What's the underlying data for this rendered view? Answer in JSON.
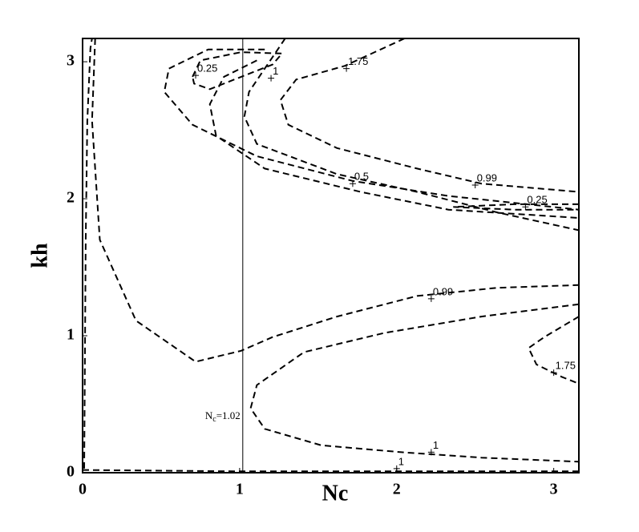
{
  "chart_data": {
    "type": "contour",
    "x_label": "Nc",
    "y_label": "kh",
    "xlim": [
      0,
      3.16
    ],
    "ylim": [
      0,
      3.17
    ],
    "xticks": [
      0,
      1,
      2,
      3
    ],
    "yticks": [
      0,
      1,
      2,
      3
    ],
    "color": "#000000",
    "vline": {
      "x": 1.02,
      "label": [
        "N",
        "c",
        "=1.02"
      ]
    },
    "contours": [
      {
        "x": [
          0,
          1,
          2,
          3.16
        ],
        "y": [
          0.02,
          0.01,
          0.01,
          0.01
        ],
        "labels": [
          {
            "text": "1",
            "x": 2.0,
            "y": 0.03
          }
        ]
      },
      {
        "x": [
          0.01,
          0.02,
          0.03,
          0.05,
          0.06
        ],
        "y": [
          0.03,
          1.7,
          2.57,
          3.1,
          3.17
        ],
        "labels": []
      },
      {
        "x": [
          0.08,
          0.06,
          0.11,
          0.34,
          0.72,
          1.01,
          1.21,
          1.62,
          2.13,
          2.64,
          3.16
        ],
        "y": [
          3.17,
          2.57,
          1.7,
          1.11,
          0.81,
          0.89,
          0.99,
          1.14,
          1.29,
          1.35,
          1.37
        ],
        "labels": [
          {
            "text": "0.99",
            "x": 2.22,
            "y": 1.27
          }
        ]
      },
      {
        "x": [
          3.16,
          2.54,
          1.92,
          1.41,
          1.11,
          1.07,
          1.16,
          1.52,
          2.03,
          2.54,
          3.16
        ],
        "y": [
          1.23,
          1.14,
          1.02,
          0.88,
          0.64,
          0.47,
          0.32,
          0.2,
          0.15,
          0.11,
          0.08
        ],
        "labels": [
          {
            "text": "1",
            "x": 2.22,
            "y": 0.15
          }
        ]
      },
      {
        "x": [
          3.16,
          2.94,
          2.84,
          2.89,
          3.05,
          3.16
        ],
        "y": [
          1.14,
          0.99,
          0.91,
          0.79,
          0.7,
          0.65
        ],
        "labels": [
          {
            "text": "1.75",
            "x": 3.0,
            "y": 0.73
          }
        ]
      },
      {
        "x": [
          0.7,
          0.75,
          1.01,
          1.27,
          1.21,
          1.01,
          0.81,
          0.71,
          0.7
        ],
        "y": [
          2.89,
          3.01,
          3.07,
          3.06,
          2.98,
          2.89,
          2.8,
          2.84,
          2.89
        ],
        "labels": [
          {
            "text": "0.25",
            "x": 0.72,
            "y": 2.9
          }
        ]
      },
      {
        "x": [
          1.16,
          0.8,
          0.55,
          0.52,
          0.7,
          1.11,
          1.72,
          2.33,
          3.16
        ],
        "y": [
          3.09,
          3.09,
          2.95,
          2.78,
          2.54,
          2.31,
          2.13,
          2.02,
          1.92
        ],
        "labels": [
          {
            "text": "0.5",
            "x": 1.72,
            "y": 2.11
          }
        ]
      },
      {
        "x": [
          1.11,
          0.9,
          0.81,
          0.85,
          1.16,
          1.77,
          2.33,
          3.16
        ],
        "y": [
          3.01,
          2.89,
          2.69,
          2.46,
          2.22,
          2.05,
          1.92,
          1.86
        ],
        "labels": []
      },
      {
        "x": [
          1.29,
          1.16,
          1.06,
          1.03,
          1.11,
          1.62,
          2.13,
          2.64,
          3.16
        ],
        "y": [
          3.17,
          2.95,
          2.78,
          2.6,
          2.4,
          2.18,
          2.05,
          1.9,
          1.77
        ],
        "labels": [
          {
            "text": "1",
            "x": 1.2,
            "y": 2.88
          }
        ]
      },
      {
        "x": [
          2.05,
          1.67,
          1.36,
          1.26,
          1.31,
          1.62,
          2.13,
          2.54,
          3.16
        ],
        "y": [
          3.17,
          2.97,
          2.87,
          2.72,
          2.54,
          2.37,
          2.22,
          2.11,
          2.05
        ],
        "labels": [
          {
            "text": "1.75",
            "x": 1.68,
            "y": 2.95
          },
          {
            "text": "0.99",
            "x": 2.5,
            "y": 2.1
          }
        ]
      },
      {
        "x": [
          3.16,
          2.75,
          2.36,
          2.75,
          3.16
        ],
        "y": [
          1.96,
          1.96,
          1.94,
          1.92,
          1.92
        ],
        "labels": [
          {
            "text": "0.25",
            "x": 2.82,
            "y": 1.94
          }
        ]
      }
    ]
  }
}
